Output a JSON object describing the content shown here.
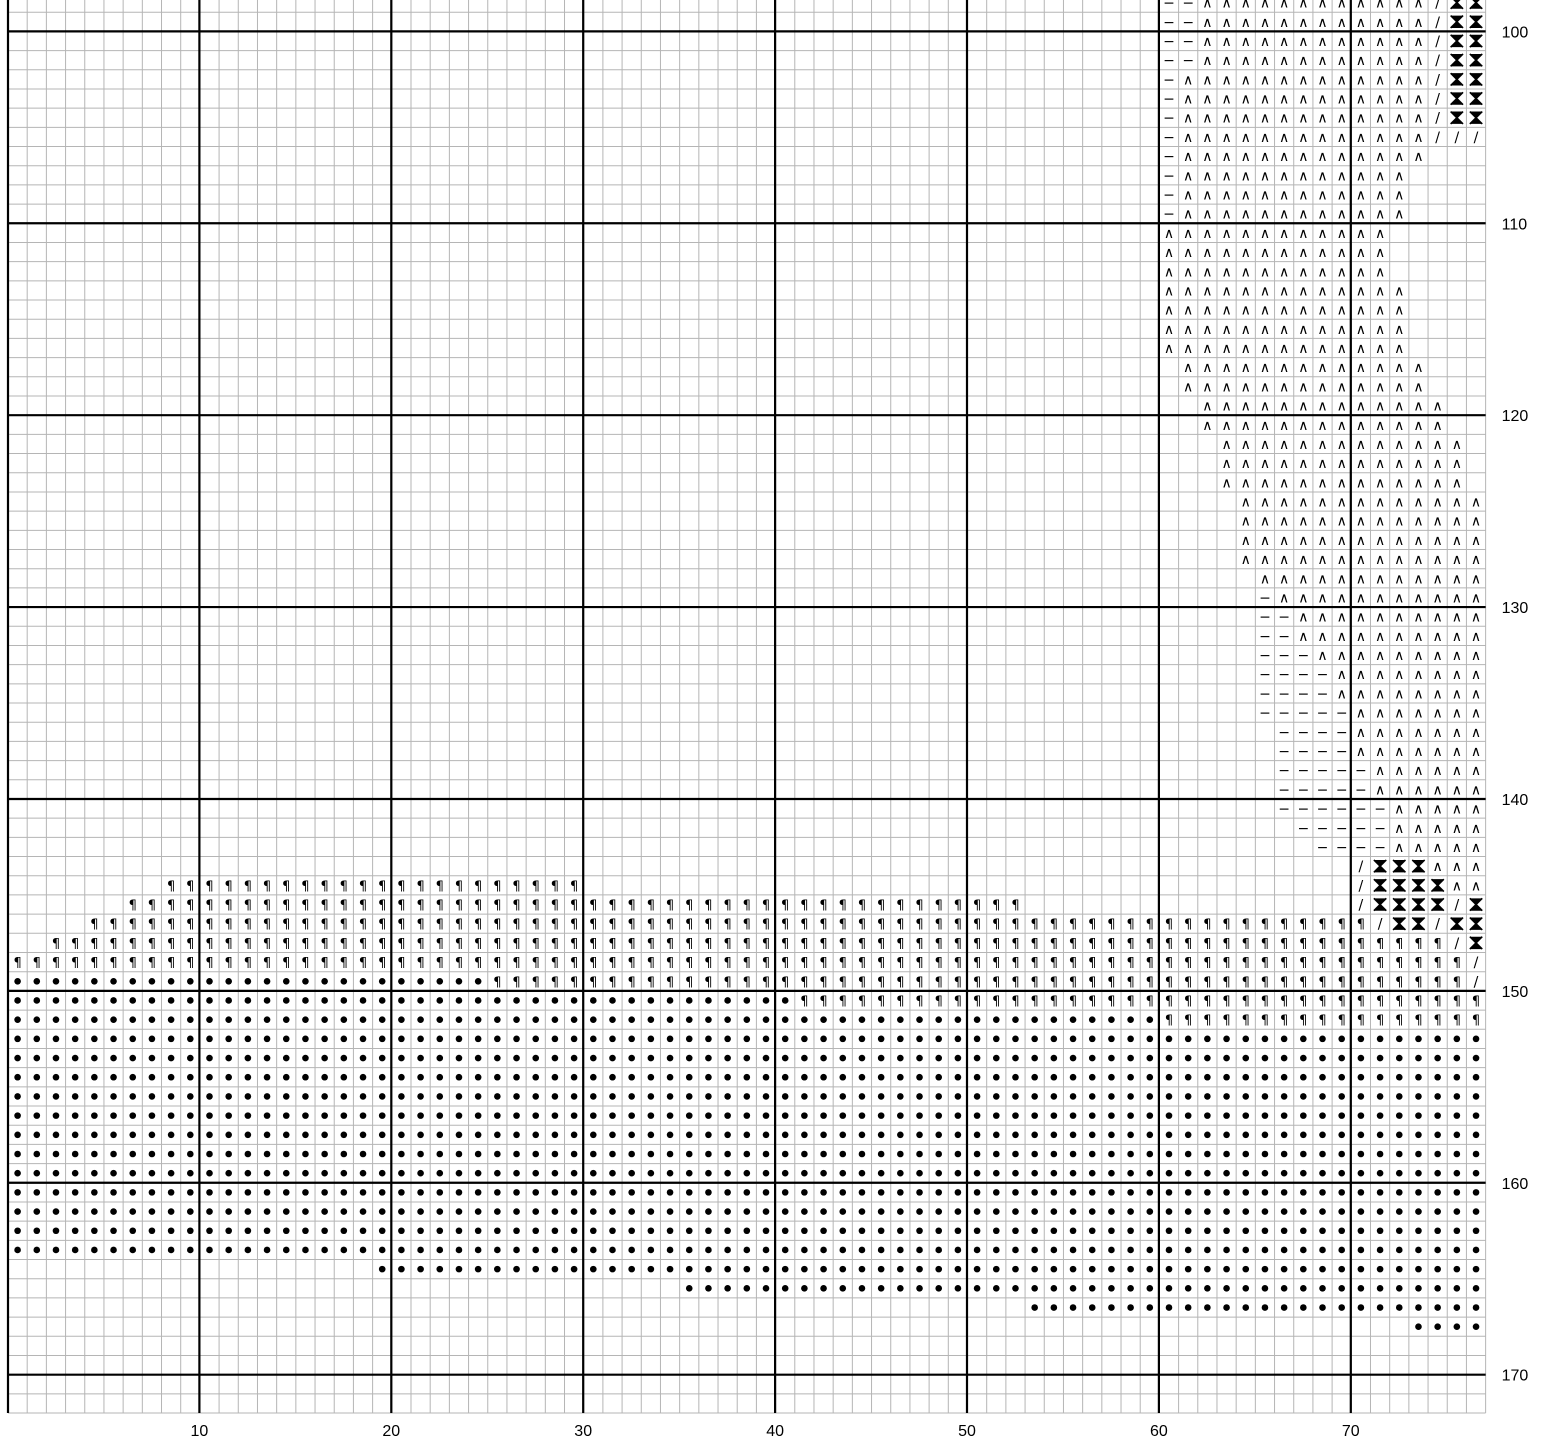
{
  "pattern": {
    "first_col": 1,
    "last_col": 77,
    "first_row": 98,
    "last_row": 171,
    "bottom_ticks": [
      "10",
      "20",
      "30",
      "40",
      "50",
      "60",
      "70"
    ],
    "right_ticks": [
      "100",
      "110",
      "120",
      "130",
      "140",
      "150",
      "160",
      "170"
    ],
    "symbol_glyphs": {
      "dash": "−",
      "caret": "∧",
      "slash": "/",
      "pilcrow": "¶"
    },
    "symbol_colors": {
      "ink": "#000000",
      "fine_grid": "#b5b5b5",
      "bold_grid": "#000000",
      "background": "#ffffff"
    },
    "regions": [
      {
        "row": 98,
        "segments": [
          [
            61,
            62,
            "dash"
          ],
          [
            63,
            70,
            "caret"
          ],
          [
            71,
            74,
            "caret"
          ],
          [
            75,
            75,
            "slash"
          ],
          [
            76,
            77,
            "hourglass"
          ]
        ]
      },
      {
        "row": 99,
        "segments": [
          [
            61,
            62,
            "dash"
          ],
          [
            63,
            74,
            "caret"
          ],
          [
            75,
            75,
            "slash"
          ],
          [
            76,
            77,
            "hourglass"
          ]
        ]
      },
      {
        "row": 100,
        "segments": [
          [
            61,
            62,
            "dash"
          ],
          [
            63,
            74,
            "caret"
          ],
          [
            75,
            75,
            "slash"
          ],
          [
            76,
            77,
            "hourglass"
          ]
        ]
      },
      {
        "row": 101,
        "segments": [
          [
            61,
            62,
            "dash"
          ],
          [
            63,
            74,
            "caret"
          ],
          [
            75,
            75,
            "slash"
          ],
          [
            76,
            77,
            "hourglass"
          ]
        ]
      },
      {
        "row": 102,
        "segments": [
          [
            61,
            61,
            "dash"
          ],
          [
            62,
            74,
            "caret"
          ],
          [
            75,
            75,
            "slash"
          ],
          [
            76,
            77,
            "hourglass"
          ]
        ]
      },
      {
        "row": 103,
        "segments": [
          [
            61,
            61,
            "dash"
          ],
          [
            62,
            74,
            "caret"
          ],
          [
            75,
            75,
            "slash"
          ],
          [
            76,
            77,
            "hourglass"
          ]
        ]
      },
      {
        "row": 104,
        "segments": [
          [
            61,
            61,
            "dash"
          ],
          [
            62,
            74,
            "caret"
          ],
          [
            75,
            75,
            "slash"
          ],
          [
            76,
            77,
            "hourglass"
          ]
        ]
      },
      {
        "row": 105,
        "segments": [
          [
            61,
            61,
            "dash"
          ],
          [
            62,
            74,
            "caret"
          ],
          [
            75,
            77,
            "slash"
          ]
        ]
      },
      {
        "row": 106,
        "segments": [
          [
            61,
            61,
            "dash"
          ],
          [
            62,
            74,
            "caret"
          ]
        ]
      },
      {
        "row": 107,
        "segments": [
          [
            61,
            61,
            "dash"
          ],
          [
            62,
            73,
            "caret"
          ]
        ]
      },
      {
        "row": 108,
        "segments": [
          [
            61,
            61,
            "dash"
          ],
          [
            62,
            73,
            "caret"
          ]
        ]
      },
      {
        "row": 109,
        "segments": [
          [
            61,
            61,
            "dash"
          ],
          [
            62,
            73,
            "caret"
          ]
        ]
      },
      {
        "row": 110,
        "segments": [
          [
            61,
            72,
            "caret"
          ]
        ]
      },
      {
        "row": 111,
        "segments": [
          [
            61,
            72,
            "caret"
          ]
        ]
      },
      {
        "row": 112,
        "segments": [
          [
            61,
            72,
            "caret"
          ]
        ]
      },
      {
        "row": 113,
        "segments": [
          [
            61,
            73,
            "caret"
          ]
        ]
      },
      {
        "row": 114,
        "segments": [
          [
            61,
            73,
            "caret"
          ]
        ]
      },
      {
        "row": 115,
        "segments": [
          [
            61,
            73,
            "caret"
          ]
        ]
      },
      {
        "row": 116,
        "segments": [
          [
            61,
            73,
            "caret"
          ]
        ]
      },
      {
        "row": 117,
        "segments": [
          [
            62,
            74,
            "caret"
          ]
        ]
      },
      {
        "row": 118,
        "segments": [
          [
            62,
            74,
            "caret"
          ]
        ]
      },
      {
        "row": 119,
        "segments": [
          [
            63,
            75,
            "caret"
          ]
        ]
      },
      {
        "row": 120,
        "segments": [
          [
            63,
            75,
            "caret"
          ]
        ]
      },
      {
        "row": 121,
        "segments": [
          [
            64,
            76,
            "caret"
          ]
        ]
      },
      {
        "row": 122,
        "segments": [
          [
            64,
            76,
            "caret"
          ]
        ]
      },
      {
        "row": 123,
        "segments": [
          [
            64,
            76,
            "caret"
          ]
        ]
      },
      {
        "row": 124,
        "segments": [
          [
            65,
            77,
            "caret"
          ]
        ]
      },
      {
        "row": 125,
        "segments": [
          [
            65,
            77,
            "caret"
          ]
        ]
      },
      {
        "row": 126,
        "segments": [
          [
            65,
            77,
            "caret"
          ]
        ]
      },
      {
        "row": 127,
        "segments": [
          [
            65,
            77,
            "caret"
          ]
        ]
      },
      {
        "row": 128,
        "segments": [
          [
            66,
            77,
            "caret"
          ]
        ]
      },
      {
        "row": 129,
        "segments": [
          [
            66,
            66,
            "dash"
          ],
          [
            67,
            77,
            "caret"
          ]
        ]
      },
      {
        "row": 130,
        "segments": [
          [
            66,
            67,
            "dash"
          ],
          [
            68,
            77,
            "caret"
          ]
        ]
      },
      {
        "row": 131,
        "segments": [
          [
            66,
            67,
            "dash"
          ],
          [
            68,
            77,
            "caret"
          ]
        ]
      },
      {
        "row": 132,
        "segments": [
          [
            66,
            68,
            "dash"
          ],
          [
            69,
            77,
            "caret"
          ]
        ]
      },
      {
        "row": 133,
        "segments": [
          [
            66,
            69,
            "dash"
          ],
          [
            70,
            77,
            "caret"
          ]
        ]
      },
      {
        "row": 134,
        "segments": [
          [
            66,
            69,
            "dash"
          ],
          [
            70,
            77,
            "caret"
          ]
        ]
      },
      {
        "row": 135,
        "segments": [
          [
            66,
            70,
            "dash"
          ],
          [
            71,
            77,
            "caret"
          ]
        ]
      },
      {
        "row": 136,
        "segments": [
          [
            67,
            70,
            "dash"
          ],
          [
            71,
            77,
            "caret"
          ]
        ]
      },
      {
        "row": 137,
        "segments": [
          [
            67,
            70,
            "dash"
          ],
          [
            71,
            77,
            "caret"
          ]
        ]
      },
      {
        "row": 138,
        "segments": [
          [
            67,
            71,
            "dash"
          ],
          [
            72,
            77,
            "caret"
          ]
        ]
      },
      {
        "row": 139,
        "segments": [
          [
            67,
            71,
            "dash"
          ],
          [
            72,
            77,
            "caret"
          ]
        ]
      },
      {
        "row": 140,
        "segments": [
          [
            67,
            72,
            "dash"
          ],
          [
            73,
            77,
            "caret"
          ]
        ]
      },
      {
        "row": 141,
        "segments": [
          [
            68,
            72,
            "dash"
          ],
          [
            73,
            77,
            "caret"
          ]
        ]
      },
      {
        "row": 142,
        "segments": [
          [
            69,
            72,
            "dash"
          ],
          [
            73,
            77,
            "caret"
          ]
        ]
      },
      {
        "row": 143,
        "segments": [
          [
            71,
            71,
            "slash"
          ],
          [
            72,
            74,
            "hourglass"
          ],
          [
            75,
            77,
            "caret"
          ]
        ]
      },
      {
        "row": 144,
        "segments": [
          [
            9,
            30,
            "pilcrow"
          ],
          [
            71,
            71,
            "slash"
          ],
          [
            72,
            75,
            "hourglass"
          ],
          [
            76,
            77,
            "caret"
          ]
        ]
      },
      {
        "row": 145,
        "segments": [
          [
            7,
            53,
            "pilcrow"
          ],
          [
            71,
            71,
            "slash"
          ],
          [
            72,
            75,
            "hourglass"
          ],
          [
            76,
            76,
            "slash"
          ],
          [
            77,
            77,
            "hourglass"
          ]
        ]
      },
      {
        "row": 146,
        "segments": [
          [
            5,
            71,
            "pilcrow"
          ],
          [
            72,
            72,
            "slash"
          ],
          [
            73,
            74,
            "hourglass"
          ],
          [
            75,
            75,
            "slash"
          ],
          [
            76,
            77,
            "hourglass"
          ]
        ]
      },
      {
        "row": 147,
        "segments": [
          [
            3,
            75,
            "pilcrow"
          ],
          [
            76,
            76,
            "slash"
          ],
          [
            77,
            77,
            "hourglass"
          ]
        ]
      },
      {
        "row": 148,
        "segments": [
          [
            1,
            76,
            "pilcrow"
          ],
          [
            77,
            77,
            "slash"
          ]
        ]
      },
      {
        "row": 149,
        "segments": [
          [
            1,
            25,
            "dot"
          ],
          [
            26,
            76,
            "pilcrow"
          ],
          [
            77,
            77,
            "slash"
          ]
        ]
      },
      {
        "row": 150,
        "segments": [
          [
            1,
            41,
            "dot"
          ],
          [
            42,
            77,
            "pilcrow"
          ]
        ]
      },
      {
        "row": 151,
        "segments": [
          [
            1,
            60,
            "dot"
          ],
          [
            61,
            77,
            "pilcrow"
          ]
        ]
      },
      {
        "row": 152,
        "segments": [
          [
            1,
            77,
            "dot"
          ]
        ]
      },
      {
        "row": 153,
        "segments": [
          [
            1,
            77,
            "dot"
          ]
        ]
      },
      {
        "row": 154,
        "segments": [
          [
            1,
            77,
            "dot"
          ]
        ]
      },
      {
        "row": 155,
        "segments": [
          [
            1,
            77,
            "dot"
          ]
        ]
      },
      {
        "row": 156,
        "segments": [
          [
            1,
            77,
            "dot"
          ]
        ]
      },
      {
        "row": 157,
        "segments": [
          [
            1,
            77,
            "dot"
          ]
        ]
      },
      {
        "row": 158,
        "segments": [
          [
            1,
            77,
            "dot"
          ]
        ]
      },
      {
        "row": 159,
        "segments": [
          [
            1,
            77,
            "dot"
          ]
        ]
      },
      {
        "row": 160,
        "segments": [
          [
            1,
            77,
            "dot"
          ]
        ]
      },
      {
        "row": 161,
        "segments": [
          [
            1,
            77,
            "dot"
          ]
        ]
      },
      {
        "row": 162,
        "segments": [
          [
            1,
            77,
            "dot"
          ]
        ]
      },
      {
        "row": 163,
        "segments": [
          [
            1,
            77,
            "dot"
          ]
        ]
      },
      {
        "row": 164,
        "segments": [
          [
            20,
            77,
            "dot"
          ]
        ]
      },
      {
        "row": 165,
        "segments": [
          [
            36,
            77,
            "dot"
          ]
        ]
      },
      {
        "row": 166,
        "segments": [
          [
            54,
            77,
            "dot"
          ]
        ]
      },
      {
        "row": 167,
        "segments": [
          [
            74,
            77,
            "dot"
          ]
        ]
      }
    ]
  }
}
